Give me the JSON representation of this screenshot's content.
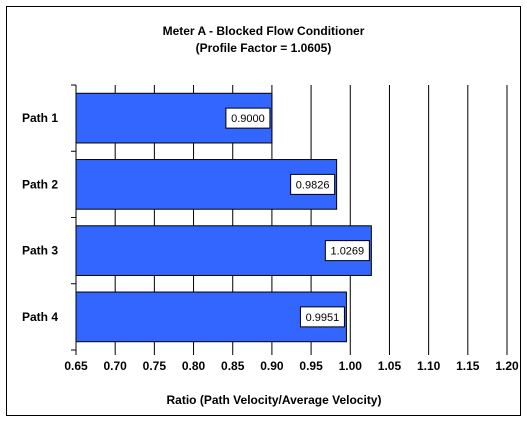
{
  "chart_data": {
    "type": "bar",
    "orientation": "horizontal",
    "title": "Meter A - Blocked Flow Conditioner",
    "subtitle": "(Profile Factor = 1.0605)",
    "xlabel": "Ratio (Path Velocity/Average Velocity)",
    "ylabel": "",
    "categories": [
      "Path 1",
      "Path 2",
      "Path 3",
      "Path 4"
    ],
    "values": [
      0.9,
      0.9826,
      1.0269,
      0.9951
    ],
    "data_labels": [
      "0.9000",
      "0.9826",
      "1.0269",
      "0.9951"
    ],
    "xlim": [
      0.65,
      1.2
    ],
    "ticks": [
      "0.65",
      "0.70",
      "0.75",
      "0.80",
      "0.85",
      "0.90",
      "0.95",
      "1.00",
      "1.05",
      "1.10",
      "1.15",
      "1.20"
    ],
    "grid": "vertical",
    "legend": "none",
    "bar_color": "#3366FF",
    "bar_edge_color": "#000000"
  }
}
